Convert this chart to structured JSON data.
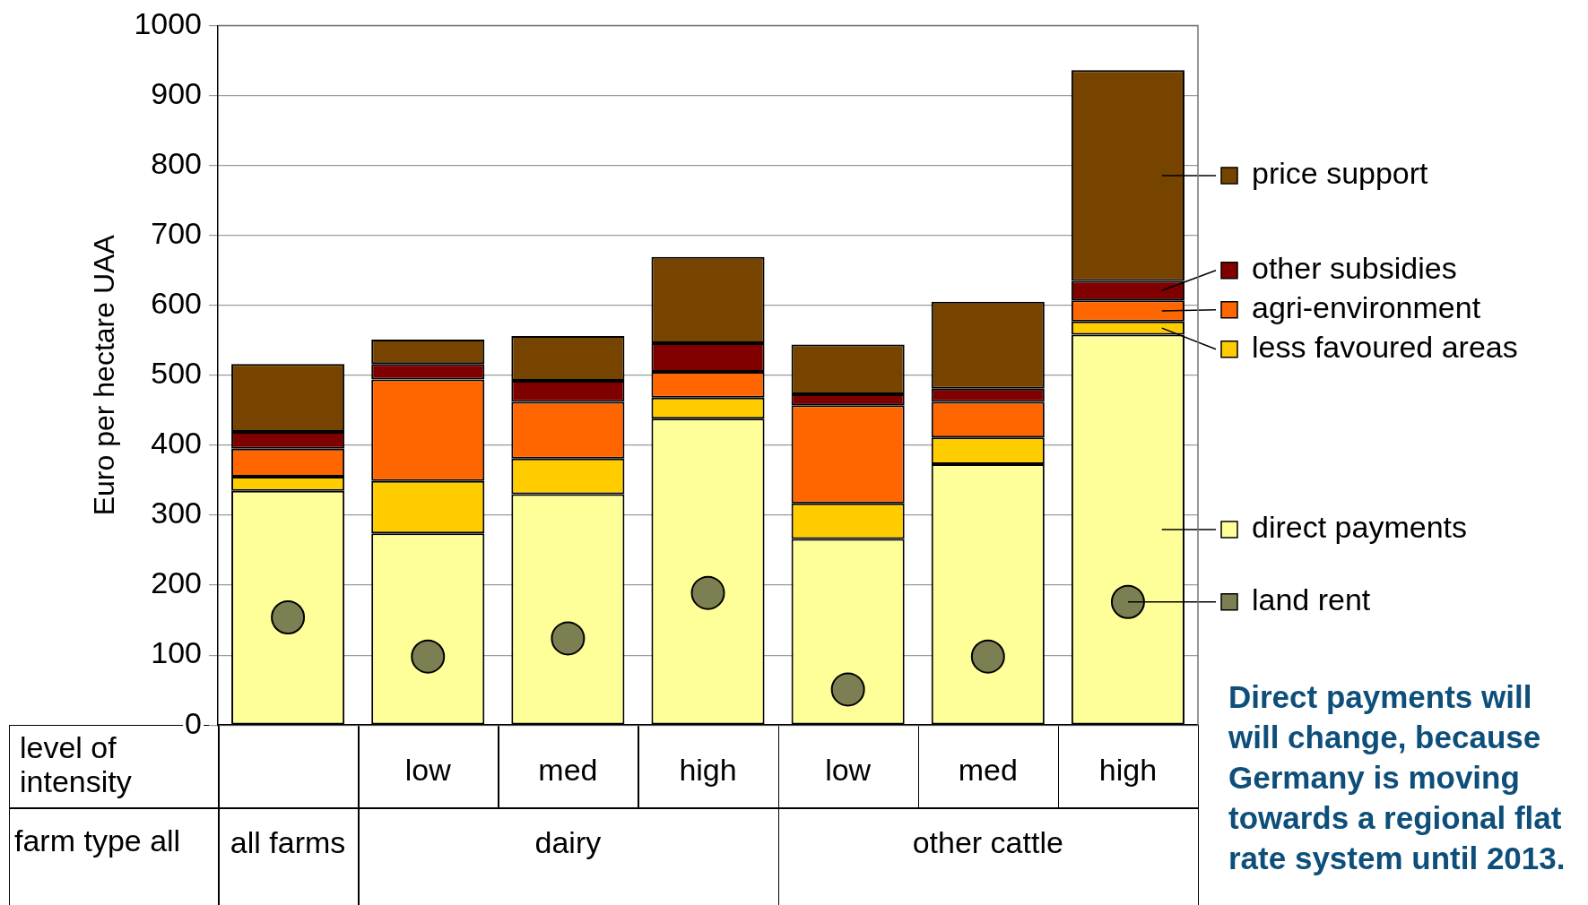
{
  "chart_data": {
    "type": "bar",
    "stacked": true,
    "ylabel": "Euro per hectare UAA",
    "categories": [
      null,
      "low",
      "med",
      "high",
      "low",
      "med",
      "high"
    ],
    "series": [
      {
        "name": "direct payments",
        "color": "#ffff99",
        "values": [
          335,
          274,
          330,
          438,
          266,
          373,
          558
        ]
      },
      {
        "name": "less favoured areas",
        "color": "#ffcc00",
        "values": [
          20,
          75,
          51,
          30,
          51,
          38,
          19
        ]
      },
      {
        "name": "agri-environment",
        "color": "#ff6600",
        "values": [
          40,
          145,
          81,
          37,
          140,
          51,
          30
        ]
      },
      {
        "name": "other subsidies",
        "color": "#800000",
        "values": [
          24,
          22,
          30,
          41,
          16,
          19,
          28
        ]
      },
      {
        "name": "price support",
        "color": "#774400",
        "values": [
          97,
          35,
          64,
          123,
          71,
          124,
          301
        ]
      },
      {
        "name": "land rent",
        "type": "scatter",
        "color": "#7b7f52",
        "values": [
          154,
          98,
          124,
          189,
          51,
          98,
          176
        ]
      }
    ],
    "marker": "circle",
    "ylim": [
      0,
      1000
    ],
    "yticks": [
      0,
      100,
      200,
      300,
      400,
      500,
      600,
      700,
      800,
      900,
      1000
    ],
    "grid": "y",
    "legend": "right",
    "annotations": [
      "level of intensity",
      "farm type all",
      "all farms",
      "dairy",
      "other cattle",
      "Direct payments will will change, because Germany is moving towards a regional flat rate system until 2013."
    ]
  }
}
